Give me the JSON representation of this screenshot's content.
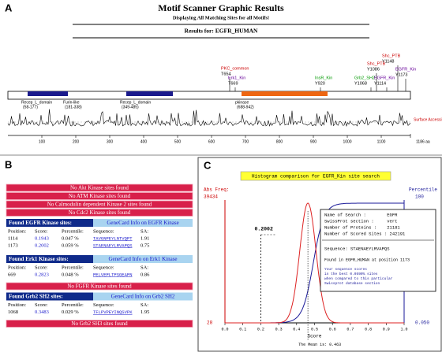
{
  "panel_a": {
    "letter": "A",
    "title": "Motif Scanner Graphic Results",
    "subtitle": "Displaying All Matching Sites for all Motifs!",
    "results_for": "Results for: EGFR_HUMAN",
    "sites": [
      {
        "motif": "PKC_common",
        "residue": "T654"
      },
      {
        "motif": "Erk1_Kin",
        "residue": "T669"
      },
      {
        "motif": "InsR_Kin",
        "residue": "Y920"
      },
      {
        "motif": "Grb2_SH2",
        "residue": "Y1068"
      },
      {
        "motif": "EGFR_Kin",
        "residue": "Y1114"
      },
      {
        "motif": "Shc_PTB",
        "residue": "Y1086"
      },
      {
        "motif": "Shc_PTB",
        "residue": "Y1148"
      },
      {
        "motif": "EGFR_Kin",
        "residue": "Y1173"
      }
    ],
    "domains": [
      {
        "name": "Recep_L_domain",
        "range": "(58-177)"
      },
      {
        "name": "Furin-like",
        "range": "(181-338)"
      },
      {
        "name": "Recep_L_domain",
        "range": "(349-485)"
      },
      {
        "name": "pkinase",
        "range": "(688-942)"
      }
    ],
    "accessibility_label": "Surface Accessibility",
    "axis_ticks": [
      100,
      200,
      300,
      400,
      500,
      600,
      700,
      800,
      900,
      1000,
      1100
    ],
    "axis_end": {
      "value": 1186,
      "label": "1186 aa"
    }
  },
  "panel_b": {
    "letter": "B",
    "items": [
      {
        "not_found": "No Akt Kinase sites found"
      },
      {
        "not_found": "No ATM Kinase sites found"
      },
      {
        "not_found": "No Calmodulin dependent Kinase 2 sites found"
      },
      {
        "not_found": "No Cdc2 Kinase sites found"
      },
      {
        "found": "Found EGFR Kinase sites:",
        "link": "GeneCard Info on EGFR Kinase",
        "columns": [
          "Position:",
          "Score:",
          "Percentile:",
          "Sequence:",
          "SA:"
        ],
        "rows": [
          [
            1114,
            0.1943,
            "0.047 %",
            "TAVGNPEYLNTVQPT",
            1.91
          ],
          [
            1173,
            0.2002,
            "0.059 %",
            "STAENAEYLRVAPQS",
            0.75
          ]
        ]
      },
      {
        "found": "Found Erk1 Kinase sites:",
        "link": "GeneCard Info on Erk1 Kinase",
        "columns": [
          "Position:",
          "Score:",
          "Percentile:",
          "Sequence:",
          "SA:"
        ],
        "rows": [
          [
            669,
            0.2823,
            "0.048 %",
            "PELVEPLTPSGEAPN",
            0.86
          ]
        ]
      },
      {
        "not_found": "No FGFR Kinase sites found"
      },
      {
        "found": "Found Grb2 SH2 sites:",
        "link": "GeneCard Info on Grb2 SH2",
        "columns": [
          "Position:",
          "Score:",
          "Percentile:",
          "Sequence:",
          "SA:"
        ],
        "rows": [
          [
            1068,
            0.3483,
            "0.029 %",
            "TFLPVPEYINQSVPK",
            1.95
          ]
        ]
      },
      {
        "not_found": "No Grb2 SH3 sites found"
      }
    ]
  },
  "panel_c": {
    "letter": "C",
    "title": "Histogram comparison for EGFR_Kin site search",
    "left_axis_label": "Abs Freq:",
    "left_max": "39434",
    "left_min": "28",
    "right_axis_label": "Percentile",
    "right_max": "100",
    "right_min": "0.050",
    "x_ticks": [
      {
        "value": 0,
        "label": "0.0"
      },
      {
        "value": 0.1,
        "label": "0.1"
      },
      {
        "value": 0.2,
        "label": "0.2"
      },
      {
        "value": 0.3,
        "label": "0.3"
      },
      {
        "value": 0.4,
        "label": "0.4"
      },
      {
        "value": 0.5,
        "label": "0.5"
      },
      {
        "value": 0.6,
        "label": "0.6"
      },
      {
        "value": 0.7,
        "label": "0.7"
      },
      {
        "value": 0.8,
        "label": "0.8"
      },
      {
        "value": 0.9,
        "label": "0.9"
      },
      {
        "value": 1,
        "label": "1.0"
      }
    ],
    "x_label": "Score",
    "selected_score": 0.2002,
    "mean_prefix": "The Mean is:",
    "mean": 0.463,
    "info": {
      "lines": [
        "Name of Search :        EGFR",
        "SwissProt section :     vert",
        "Number of Proteins :    21181",
        "Number of Scored Sites : 242191"
      ],
      "sequence": "Sequence: STAENAEYLRVAPQS",
      "found_at": "Found in EGFR_HUMAN at position 1173",
      "note": [
        "Your sequence scores",
        "in the best 0.0590% sites",
        "when compared to this particular",
        "Swissprot database section"
      ]
    }
  }
}
